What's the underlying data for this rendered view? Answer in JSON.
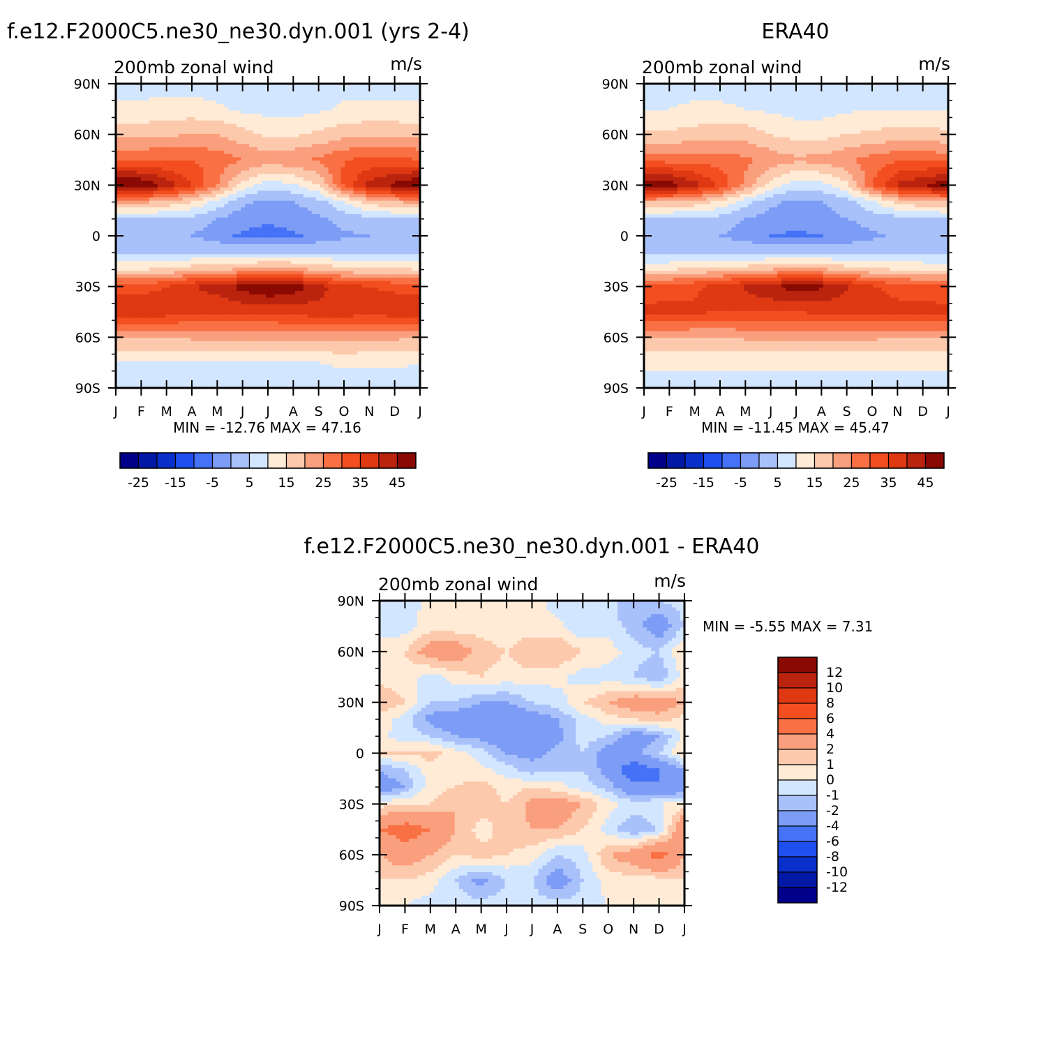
{
  "chart_data": [
    {
      "type": "heatmap",
      "id": "model",
      "title": "f.e12.F2000C5.ne30_ne30.dyn.001 (yrs 2-4)",
      "subtitle": "200mb zonal wind",
      "units": "m/s",
      "x_ticks": [
        "J",
        "F",
        "M",
        "A",
        "M",
        "J",
        "J",
        "A",
        "S",
        "O",
        "N",
        "D",
        "J"
      ],
      "y_ticks": [
        "90N",
        "60N",
        "30N",
        "0",
        "30S",
        "60S",
        "90S"
      ],
      "ylim": [
        -90,
        90
      ],
      "min_max": "MIN = -12.76 MAX = 47.16",
      "grid": false,
      "z_latitudes": [
        -90,
        -75,
        -60,
        -45,
        -30,
        -20,
        -10,
        0,
        10,
        20,
        30,
        45,
        60,
        75,
        90
      ],
      "z": [
        [
          2,
          2,
          2,
          2,
          2,
          2,
          2,
          2,
          2,
          2,
          2,
          2,
          2
        ],
        [
          5,
          5,
          5,
          5,
          5,
          5,
          5,
          5,
          5,
          6,
          6,
          6,
          5
        ],
        [
          15,
          15,
          15,
          16,
          16,
          16,
          16,
          17,
          17,
          17,
          16,
          16,
          15
        ],
        [
          34,
          35,
          33,
          31,
          31,
          31,
          31,
          32,
          33,
          33,
          32,
          33,
          34
        ],
        [
          28,
          28,
          30,
          35,
          37,
          42,
          46,
          43,
          37,
          32,
          30,
          29,
          28
        ],
        [
          10,
          10,
          11,
          13,
          14,
          16,
          18,
          17,
          14,
          12,
          11,
          11,
          10
        ],
        [
          -1,
          -2,
          -1,
          0,
          0,
          0,
          0,
          0,
          0,
          0,
          0,
          -1,
          -1
        ],
        [
          -4,
          -4,
          -4,
          -5,
          -8,
          -11,
          -12,
          -11,
          -8,
          -6,
          -5,
          -4,
          -4
        ],
        [
          -1,
          -1,
          -1,
          -2,
          -5,
          -8,
          -9,
          -8,
          -6,
          -3,
          -2,
          -1,
          -1
        ],
        [
          16,
          16,
          14,
          10,
          3,
          -4,
          -6,
          -5,
          -2,
          5,
          12,
          15,
          16
        ],
        [
          46,
          45,
          38,
          30,
          20,
          8,
          2,
          4,
          10,
          26,
          37,
          42,
          46
        ],
        [
          25,
          25,
          25,
          25,
          23,
          20,
          18,
          19,
          21,
          25,
          26,
          26,
          25
        ],
        [
          13,
          13,
          14,
          15,
          15,
          12,
          9,
          9,
          11,
          13,
          14,
          14,
          13
        ],
        [
          6,
          6,
          7,
          7,
          6,
          4,
          3,
          3,
          4,
          6,
          6,
          6,
          6
        ],
        [
          3,
          3,
          3,
          3,
          2,
          2,
          1,
          1,
          2,
          3,
          3,
          3,
          3
        ]
      ],
      "colorbar_ticks": [
        "-25",
        "-15",
        "-5",
        "5",
        "15",
        "25",
        "35",
        "45"
      ]
    },
    {
      "type": "heatmap",
      "id": "obs",
      "title": "ERA40",
      "subtitle": "200mb zonal wind",
      "units": "m/s",
      "x_ticks": [
        "J",
        "F",
        "M",
        "A",
        "M",
        "J",
        "J",
        "A",
        "S",
        "O",
        "N",
        "D",
        "J"
      ],
      "y_ticks": [
        "90N",
        "60N",
        "30N",
        "0",
        "30S",
        "60S",
        "90S"
      ],
      "ylim": [
        -90,
        90
      ],
      "min_max": "MIN = -11.45 MAX = 45.47",
      "grid": false,
      "z_latitudes": [
        -90,
        -75,
        -60,
        -45,
        -30,
        -20,
        -10,
        0,
        10,
        20,
        30,
        45,
        60,
        75,
        90
      ],
      "z": [
        [
          3,
          3,
          3,
          3,
          3,
          3,
          3,
          3,
          3,
          3,
          3,
          3,
          3
        ],
        [
          6,
          6,
          6,
          6,
          6,
          6,
          6,
          6,
          6,
          6,
          6,
          6,
          6
        ],
        [
          15,
          15,
          15,
          15,
          16,
          16,
          16,
          16,
          16,
          16,
          15,
          15,
          15
        ],
        [
          32,
          32,
          31,
          30,
          30,
          30,
          30,
          31,
          31,
          31,
          32,
          32,
          32
        ],
        [
          26,
          27,
          29,
          33,
          36,
          40,
          42,
          41,
          36,
          31,
          28,
          27,
          26
        ],
        [
          9,
          10,
          11,
          12,
          13,
          15,
          17,
          16,
          13,
          11,
          10,
          10,
          9
        ],
        [
          -2,
          -2,
          -2,
          -1,
          -1,
          -1,
          0,
          -1,
          -1,
          -1,
          -1,
          -2,
          -2
        ],
        [
          -4,
          -4,
          -4,
          -5,
          -7,
          -10,
          -11,
          -10,
          -8,
          -6,
          -4,
          -4,
          -4
        ],
        [
          -1,
          -1,
          -1,
          -2,
          -5,
          -7,
          -8,
          -7,
          -5,
          -3,
          -2,
          -1,
          -1
        ],
        [
          15,
          15,
          13,
          9,
          2,
          -4,
          -6,
          -5,
          -2,
          4,
          11,
          14,
          15
        ],
        [
          44,
          43,
          37,
          29,
          19,
          8,
          2,
          3,
          9,
          25,
          36,
          40,
          44
        ],
        [
          23,
          23,
          23,
          23,
          21,
          18,
          16,
          17,
          19,
          22,
          24,
          24,
          23
        ],
        [
          11,
          11,
          12,
          13,
          13,
          10,
          8,
          8,
          10,
          11,
          12,
          12,
          11
        ],
        [
          5,
          5,
          6,
          6,
          5,
          4,
          3,
          3,
          4,
          5,
          5,
          5,
          5
        ],
        [
          3,
          3,
          3,
          3,
          2,
          2,
          2,
          2,
          2,
          3,
          3,
          3,
          3
        ]
      ],
      "colorbar_ticks": [
        "-25",
        "-15",
        "-5",
        "5",
        "15",
        "25",
        "35",
        "45"
      ]
    },
    {
      "type": "heatmap",
      "id": "diff",
      "title": "f.e12.F2000C5.ne30_ne30.dyn.001 - ERA40",
      "subtitle": "200mb zonal wind",
      "units": "m/s",
      "x_ticks": [
        "J",
        "F",
        "M",
        "A",
        "M",
        "J",
        "J",
        "A",
        "S",
        "O",
        "N",
        "D",
        "J"
      ],
      "y_ticks": [
        "90N",
        "60N",
        "30N",
        "0",
        "30S",
        "60S",
        "90S"
      ],
      "ylim": [
        -90,
        90
      ],
      "min_max": "MIN = -5.55 MAX = 7.31",
      "grid": false,
      "z_latitudes": [
        -90,
        -75,
        -60,
        -45,
        -30,
        -20,
        -10,
        0,
        10,
        20,
        30,
        45,
        60,
        75,
        90
      ],
      "z": [
        [
          0,
          0,
          -0.5,
          -0.5,
          -0.5,
          -0.5,
          -0.5,
          -0.5,
          -0.5,
          0,
          0,
          0,
          0
        ],
        [
          1,
          1,
          0.5,
          -1,
          -2.5,
          -1,
          -1,
          -3,
          -1,
          0.5,
          0.5,
          0.5,
          1
        ],
        [
          2,
          3,
          2,
          1,
          1.5,
          1,
          0.5,
          -1,
          -0.5,
          2,
          3,
          5,
          2
        ],
        [
          4,
          5,
          4,
          2,
          0.5,
          1.5,
          2,
          2,
          1,
          -0.5,
          -2,
          -1,
          4
        ],
        [
          0.5,
          1,
          1,
          2,
          1.5,
          1,
          2.5,
          3,
          2,
          0.5,
          -0.5,
          0,
          0.5
        ],
        [
          -3,
          -2,
          0.5,
          1,
          1.5,
          0.5,
          1,
          0.5,
          -0.5,
          -1.5,
          -3.5,
          -4,
          -3
        ],
        [
          -2,
          -1,
          0.5,
          0.5,
          0.3,
          -0.5,
          -1.5,
          -1,
          -1,
          -2.5,
          -5.5,
          -4,
          -2
        ],
        [
          1,
          1,
          1.5,
          0.5,
          -0.5,
          -2,
          -2.5,
          -1.5,
          -1,
          -3,
          -2.5,
          -1,
          1
        ],
        [
          0.3,
          -0.5,
          -1,
          -2,
          -2.5,
          -3,
          -3.5,
          -2.5,
          -0.5,
          -1,
          -3,
          -2,
          0.3
        ],
        [
          0.5,
          -0.5,
          -2.5,
          -3,
          -3.5,
          -3.5,
          -3,
          -2,
          -0.5,
          0.5,
          1,
          1.5,
          0.5
        ],
        [
          2,
          1,
          -1,
          -1,
          -2,
          -2,
          -1,
          -0.5,
          1,
          2,
          3,
          3,
          2
        ],
        [
          0.5,
          0.5,
          -0.5,
          0.5,
          1,
          0.5,
          0.5,
          0.3,
          -0.5,
          -0.5,
          -1,
          -2,
          0.5
        ],
        [
          1,
          1,
          3,
          3,
          1.5,
          1,
          2,
          2,
          1,
          0.5,
          -0.5,
          -1,
          1
        ],
        [
          -1,
          -0.5,
          0.5,
          0.3,
          0.5,
          0.3,
          0.3,
          0.3,
          -1,
          -0.5,
          -1.5,
          -3,
          -1
        ],
        [
          -0.5,
          -0.5,
          0.3,
          0.3,
          0.3,
          0.3,
          0.5,
          -0.5,
          -0.5,
          -0.5,
          -2,
          -1,
          -0.5
        ]
      ],
      "colorbar_ticks": [
        "12",
        "10",
        "8",
        "6",
        "4",
        "2",
        "1",
        "0",
        "-1",
        "-2",
        "-4",
        "-6",
        "-8",
        "-10",
        "-12"
      ]
    }
  ],
  "colors": {
    "bluered": [
      "#00008a",
      "#0319a6",
      "#0a30cc",
      "#1f4fef",
      "#4572f6",
      "#7c9cf6",
      "#a9c1fa",
      "#d3e6ff",
      "#ffebd6",
      "#fdc9ad",
      "#fa9f7d",
      "#f97044",
      "#f34e20",
      "#de3912",
      "#ba240e",
      "#8a0a03"
    ],
    "absolute_levels": [
      -30,
      -25,
      -20,
      -15,
      -10,
      -5,
      0,
      5,
      10,
      15,
      20,
      25,
      30,
      35,
      40,
      45
    ],
    "diff_levels": [
      -12,
      -10,
      -8,
      -6,
      -4,
      -2,
      -1,
      0,
      1,
      2,
      4,
      6,
      8,
      10,
      12
    ]
  }
}
